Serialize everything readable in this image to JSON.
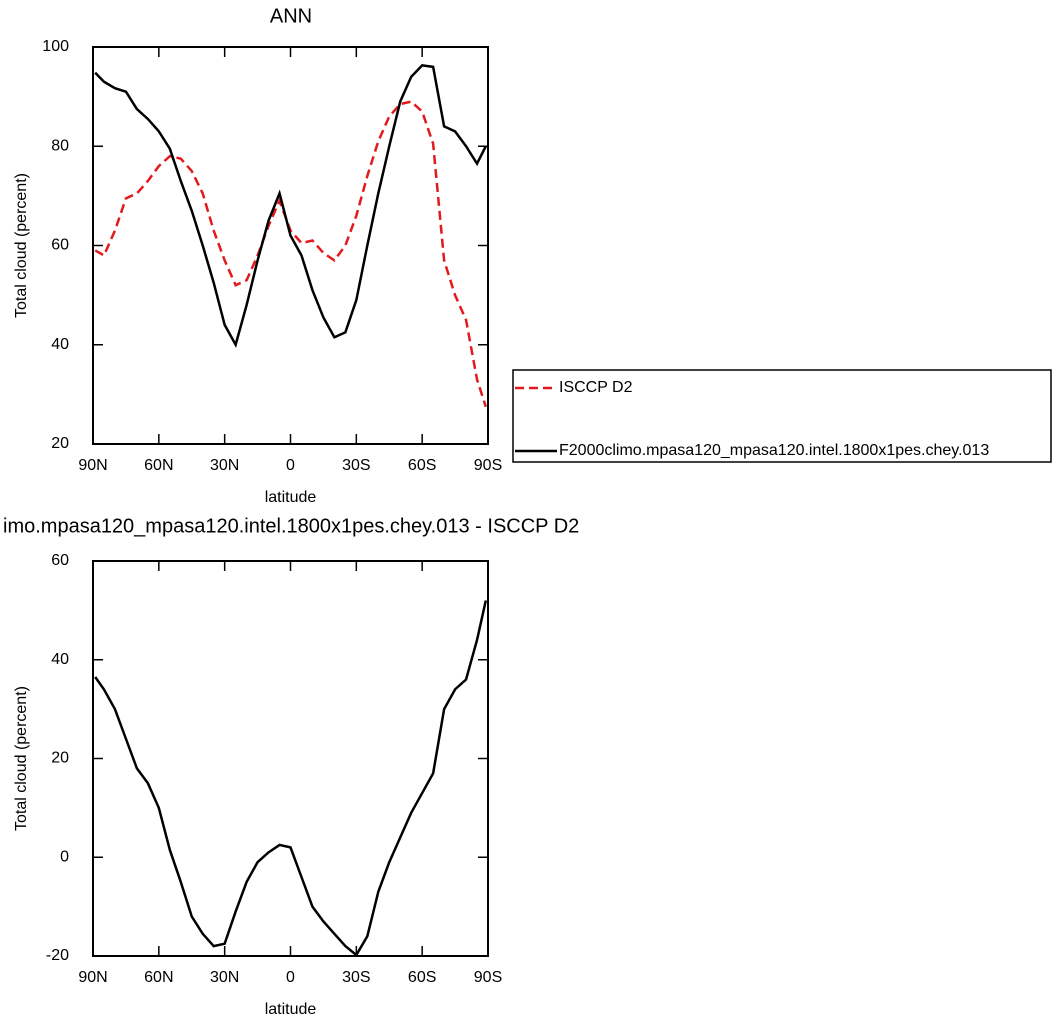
{
  "chart_data": [
    {
      "type": "line",
      "title": "ANN",
      "xlabel": "latitude",
      "ylabel": "Total cloud (percent)",
      "x": [
        89,
        85,
        80,
        75,
        70,
        65,
        60,
        55,
        50,
        45,
        40,
        35,
        30,
        25,
        20,
        15,
        10,
        5,
        0,
        -5,
        -10,
        -15,
        -20,
        -25,
        -30,
        -35,
        -40,
        -45,
        -50,
        -55,
        -60,
        -65,
        -70,
        -75,
        -80,
        -85,
        -89
      ],
      "xlim": [
        90,
        -90
      ],
      "xticks": [
        {
          "value": 90,
          "label": "90N"
        },
        {
          "value": 60,
          "label": "60N"
        },
        {
          "value": 30,
          "label": "30N"
        },
        0,
        {
          "value": -30,
          "label": "30S"
        },
        {
          "value": -60,
          "label": "60S"
        },
        {
          "value": -90,
          "label": "90S"
        }
      ],
      "ylim": [
        20,
        100
      ],
      "yticks": [
        20,
        40,
        60,
        80,
        100
      ],
      "legend": "outside-right",
      "series": [
        {
          "name": "ISCCP D2",
          "color": "#e31a1c",
          "line_style": "dashed",
          "values": [
            59,
            58,
            63,
            69.5,
            70.5,
            73,
            76,
            78,
            77.5,
            75,
            70.5,
            63,
            57,
            52,
            53,
            58,
            64,
            69,
            63,
            60.5,
            61,
            58.5,
            57,
            60,
            66,
            74,
            81,
            86,
            88.5,
            89,
            87,
            80.5,
            57,
            50,
            45,
            33,
            27.5
          ]
        },
        {
          "name": "F2000climo.mpasa120_mpasa120.intel.1800x1pes.chey.013",
          "color": "#000000",
          "line_style": "solid",
          "values": [
            94.8,
            93,
            91.7,
            91,
            87.5,
            85.5,
            83,
            79.5,
            73,
            67,
            60,
            52.5,
            44,
            40,
            48,
            57,
            65,
            70.5,
            62,
            58,
            51,
            45.5,
            41.5,
            42.5,
            49,
            60,
            70.5,
            80,
            89,
            94,
            96.3,
            96,
            84,
            83,
            80,
            76.5,
            80
          ]
        }
      ]
    },
    {
      "type": "line",
      "title": "imo.mpasa120_mpasa120.intel.1800x1pes.chey.013 - ISCCP D2",
      "xlabel": "latitude",
      "ylabel": "Total cloud (percent)",
      "x": [
        89,
        85,
        80,
        75,
        70,
        65,
        60,
        55,
        50,
        45,
        40,
        35,
        30,
        25,
        20,
        15,
        10,
        5,
        0,
        -5,
        -10,
        -15,
        -20,
        -25,
        -30,
        -35,
        -40,
        -45,
        -50,
        -55,
        -60,
        -65,
        -70,
        -75,
        -80,
        -85,
        -89
      ],
      "xlim": [
        90,
        -90
      ],
      "xticks": [
        {
          "value": 90,
          "label": "90N"
        },
        {
          "value": 60,
          "label": "60N"
        },
        {
          "value": 30,
          "label": "30N"
        },
        0,
        {
          "value": -30,
          "label": "30S"
        },
        {
          "value": -60,
          "label": "60S"
        },
        {
          "value": -90,
          "label": "90S"
        }
      ],
      "ylim": [
        -20,
        60
      ],
      "yticks": [
        -20,
        0,
        20,
        40,
        60
      ],
      "series": [
        {
          "color": "#000000",
          "line_style": "solid",
          "values": [
            36.5,
            34,
            30,
            24,
            18,
            15,
            10,
            1.5,
            -5,
            -12,
            -15.5,
            -18,
            -17.5,
            -11,
            -5,
            -1,
            1,
            2.5,
            2,
            -4,
            -10,
            -13,
            -15.5,
            -18,
            -19.8,
            -16,
            -7,
            -1,
            4,
            9,
            13,
            17,
            30,
            34,
            36,
            44,
            52
          ]
        }
      ]
    }
  ]
}
